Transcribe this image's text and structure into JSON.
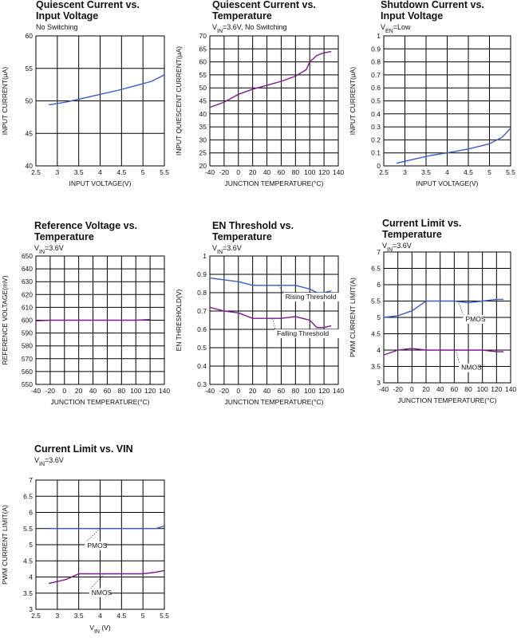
{
  "colors": {
    "blue": "#3c5bc8",
    "purple": "#7a1a8c",
    "grid": "#000000"
  },
  "chart_data": [
    {
      "type": "line",
      "title": [
        "Quiescent Current vs.",
        "Input Voltage"
      ],
      "subtitle": [
        {
          "t": "No Switching"
        }
      ],
      "xlabel": "INPUT VOLTAGE(V)",
      "ylabel": "INPUT CURRENT(µA)",
      "xlim": [
        2.5,
        5.5
      ],
      "ylim": [
        40,
        60
      ],
      "xticks": [
        2.5,
        3,
        3.5,
        4,
        4.5,
        5,
        5.5
      ],
      "xticklabels": [
        "2.5",
        "3",
        "3.5",
        "4",
        "4.5",
        "5",
        "5.5"
      ],
      "yticks": [
        40,
        45,
        50,
        55,
        60
      ],
      "yticklabels": [
        "40",
        "45",
        "50",
        "55",
        "60"
      ],
      "series": [
        {
          "color": "blue",
          "x": [
            2.8,
            3.2,
            3.6,
            4.0,
            4.4,
            4.8,
            5.2,
            5.5
          ],
          "y": [
            49.4,
            49.8,
            50.4,
            51.0,
            51.6,
            52.3,
            53.0,
            54.0
          ]
        }
      ],
      "annotations": []
    },
    {
      "type": "line",
      "title": [
        "Quiescent Current vs.",
        "Temperature"
      ],
      "subtitle": [
        {
          "t": "V"
        },
        {
          "t": "IN",
          "sub": true
        },
        {
          "t": "=3.6V, No Switching"
        }
      ],
      "xlabel": "JUNCTION TEMPERATURE(°C)",
      "ylabel": "INPUT QUIESCENT CURRENT(µA)",
      "xlim": [
        -40,
        140
      ],
      "ylim": [
        20,
        70
      ],
      "xticks": [
        -40,
        -20,
        0,
        20,
        40,
        60,
        80,
        100,
        120,
        140
      ],
      "xticklabels": [
        "-40",
        "-20",
        "0",
        "20",
        "40",
        "60",
        "80",
        "100",
        "120",
        "140"
      ],
      "yticks": [
        20,
        25,
        30,
        35,
        40,
        45,
        50,
        55,
        60,
        65,
        70
      ],
      "yticklabels": [
        "20",
        "25",
        "30",
        "35",
        "40",
        "45",
        "50",
        "55",
        "60",
        "65",
        "70"
      ],
      "series": [
        {
          "color": "purple",
          "x": [
            -40,
            -20,
            0,
            20,
            40,
            60,
            80,
            95,
            100,
            110,
            120,
            130
          ],
          "y": [
            42.5,
            44.5,
            47.5,
            49.5,
            51,
            52.5,
            54.5,
            57,
            60,
            62.5,
            63.5,
            64
          ]
        }
      ],
      "annotations": []
    },
    {
      "type": "line",
      "title": [
        "Shutdown Current vs.",
        "Input Voltage"
      ],
      "subtitle": [
        {
          "t": "V"
        },
        {
          "t": "EN",
          "sub": true
        },
        {
          "t": "=Low"
        }
      ],
      "xlabel": "INPUT VOLTAGE(V)",
      "ylabel": "INPUT CURRENT(µA)",
      "xlim": [
        2.5,
        5.5
      ],
      "ylim": [
        0,
        1
      ],
      "xticks": [
        2.5,
        3,
        3.5,
        4,
        4.5,
        5,
        5.5
      ],
      "xticklabels": [
        "2.5",
        "3",
        "3.5",
        "4",
        "4.5",
        "5",
        "5.5"
      ],
      "yticks": [
        0,
        0.1,
        0.2,
        0.3,
        0.4,
        0.5,
        0.6,
        0.7,
        0.8,
        0.9,
        1
      ],
      "yticklabels": [
        "0",
        "0.1",
        "0.2",
        "0.3",
        "0.4",
        "0.5",
        "0.6",
        "0.7",
        "0.8",
        "0.9",
        "1"
      ],
      "series": [
        {
          "color": "blue",
          "x": [
            2.8,
            3.2,
            3.6,
            4.0,
            4.5,
            5.0,
            5.3,
            5.5
          ],
          "y": [
            0.02,
            0.05,
            0.08,
            0.1,
            0.13,
            0.17,
            0.22,
            0.29
          ]
        }
      ],
      "annotations": []
    },
    {
      "type": "line",
      "title": [
        "Reference Voltage vs.",
        "Temperature"
      ],
      "subtitle": [
        {
          "t": "V"
        },
        {
          "t": "IN",
          "sub": true
        },
        {
          "t": "=3.6V"
        }
      ],
      "xlabel": "JUNCTION TEMPERATURE(°C)",
      "ylabel": "REFERENCE VOLTAGE(mV)",
      "xlim": [
        -40,
        140
      ],
      "ylim": [
        550,
        650
      ],
      "xticks": [
        -40,
        -20,
        0,
        20,
        40,
        60,
        80,
        100,
        120,
        140
      ],
      "xticklabels": [
        "-40",
        "-20",
        "0",
        "20",
        "40",
        "60",
        "80",
        "100",
        "120",
        "140"
      ],
      "yticks": [
        550,
        560,
        570,
        580,
        590,
        600,
        610,
        620,
        630,
        640,
        650
      ],
      "yticklabels": [
        "550",
        "560",
        "570",
        "580",
        "590",
        "600",
        "610",
        "620",
        "630",
        "640",
        "650"
      ],
      "series": [
        {
          "color": "purple",
          "x": [
            -40,
            -20,
            0,
            20,
            40,
            60,
            80,
            100,
            120
          ],
          "y": [
            599.5,
            600,
            600,
            600,
            600,
            600,
            600,
            600,
            600.5
          ]
        }
      ],
      "annotations": []
    },
    {
      "type": "line",
      "title": [
        "EN Threshold vs.",
        "Temperature"
      ],
      "subtitle": [
        {
          "t": "V"
        },
        {
          "t": "IN",
          "sub": true
        },
        {
          "t": "=3.6V"
        }
      ],
      "xlabel": "JUNCTION TEMPERATURE(°C)",
      "ylabel": "EN THRESHOLD(V)",
      "xlim": [
        -40,
        140
      ],
      "ylim": [
        0.3,
        1
      ],
      "xticks": [
        -40,
        -20,
        0,
        20,
        40,
        60,
        80,
        100,
        120,
        140
      ],
      "xticklabels": [
        "-40",
        "-20",
        "0",
        "20",
        "40",
        "60",
        "80",
        "100",
        "120",
        "140"
      ],
      "yticks": [
        0.3,
        0.4,
        0.5,
        0.6,
        0.7,
        0.8,
        0.9,
        1
      ],
      "yticklabels": [
        "0.3",
        "0.4",
        "0.5",
        "0.6",
        "0.7",
        "0.8",
        "0.9",
        "1"
      ],
      "series": [
        {
          "color": "blue",
          "x": [
            -40,
            -20,
            0,
            20,
            40,
            60,
            80,
            100,
            110,
            120,
            130
          ],
          "y": [
            0.88,
            0.87,
            0.86,
            0.84,
            0.84,
            0.84,
            0.84,
            0.82,
            0.8,
            0.8,
            0.81
          ]
        },
        {
          "color": "purple",
          "x": [
            -40,
            -20,
            0,
            20,
            40,
            60,
            80,
            100,
            110,
            120,
            130
          ],
          "y": [
            0.72,
            0.7,
            0.69,
            0.66,
            0.66,
            0.66,
            0.67,
            0.65,
            0.61,
            0.61,
            0.62
          ]
        }
      ],
      "annotations": [
        {
          "text": "Rising Threshold",
          "lx": 56,
          "ly": 0.84,
          "tx": 66,
          "ty": 0.765
        },
        {
          "text": "Falling Threshold",
          "lx": 48,
          "ly": 0.66,
          "tx": 54,
          "ty": 0.565
        }
      ]
    },
    {
      "type": "line",
      "title": [
        "Current Limit vs.",
        "Temperature"
      ],
      "subtitle": [
        {
          "t": "V"
        },
        {
          "t": "IN",
          "sub": true
        },
        {
          "t": "=3.6V"
        }
      ],
      "xlabel": "JUNCTION TEMPERATURE(°C)",
      "ylabel": "PWM CURRENT LIMIT(A)",
      "xlim": [
        -40,
        140
      ],
      "ylim": [
        3,
        7
      ],
      "xticks": [
        -40,
        -20,
        0,
        20,
        40,
        60,
        80,
        100,
        120,
        140
      ],
      "xticklabels": [
        "-40",
        "-20",
        "0",
        "20",
        "40",
        "60",
        "80",
        "100",
        "120",
        "140"
      ],
      "yticks": [
        3,
        3.5,
        4,
        4.5,
        5,
        5.5,
        6,
        6.5,
        7
      ],
      "yticklabels": [
        "3",
        "3.5",
        "4",
        "4.5",
        "5",
        "5.5",
        "6",
        "6.5",
        "7"
      ],
      "series": [
        {
          "color": "blue",
          "x": [
            -40,
            -20,
            0,
            20,
            40,
            60,
            80,
            100,
            120,
            130
          ],
          "y": [
            5.0,
            5.05,
            5.2,
            5.5,
            5.5,
            5.5,
            5.45,
            5.5,
            5.55,
            5.55
          ]
        },
        {
          "color": "purple",
          "x": [
            -40,
            -20,
            0,
            20,
            40,
            60,
            80,
            100,
            120,
            130
          ],
          "y": [
            3.85,
            4.0,
            4.05,
            4.0,
            4.0,
            4.0,
            4.0,
            4.0,
            3.95,
            3.95
          ]
        }
      ],
      "annotations": [
        {
          "text": "PMOS",
          "lx": 65,
          "ly": 5.5,
          "tx": 76,
          "ty": 4.88
        },
        {
          "text": "NMOS",
          "lx": 62,
          "ly": 4.0,
          "tx": 70,
          "ty": 3.4
        }
      ]
    },
    {
      "type": "line",
      "title": [
        "Current Limit vs. VIN"
      ],
      "subtitle": [
        {
          "t": "V"
        },
        {
          "t": "IN",
          "sub": true
        },
        {
          "t": "=3.6V"
        }
      ],
      "xlabel": [
        {
          "t": "V"
        },
        {
          "t": "IN",
          "sub": true
        },
        {
          "t": " (V)"
        }
      ],
      "ylabel": "PWM CURRENT LIMIT(A)",
      "xlim": [
        2.5,
        5.5
      ],
      "ylim": [
        3,
        7
      ],
      "xticks": [
        2.5,
        3,
        3.5,
        4,
        4.5,
        5,
        5.5
      ],
      "xticklabels": [
        "2.5",
        "3",
        "3.5",
        "4",
        "4.5",
        "5",
        "5.5"
      ],
      "yticks": [
        3,
        3.5,
        4,
        4.5,
        5,
        5.5,
        6,
        6.5,
        7
      ],
      "yticklabels": [
        "3",
        "3.5",
        "4",
        "4.5",
        "5",
        "5.5",
        "6",
        "6.5",
        "7"
      ],
      "series": [
        {
          "color": "blue",
          "x": [
            2.8,
            3.5,
            4.0,
            4.5,
            5.0,
            5.3,
            5.5
          ],
          "y": [
            5.5,
            5.5,
            5.5,
            5.5,
            5.5,
            5.5,
            5.58
          ]
        },
        {
          "color": "purple",
          "x": [
            2.8,
            3.2,
            3.5,
            4.0,
            4.5,
            5.0,
            5.3,
            5.5
          ],
          "y": [
            3.8,
            3.92,
            4.1,
            4.1,
            4.1,
            4.1,
            4.15,
            4.2
          ]
        }
      ],
      "annotations": [
        {
          "text": "PMOS",
          "lx": 4.0,
          "ly": 5.5,
          "tx": 3.7,
          "ty": 4.9
        },
        {
          "text": "NMOS",
          "lx": 4.1,
          "ly": 4.1,
          "tx": 3.8,
          "ty": 3.45
        }
      ]
    }
  ]
}
